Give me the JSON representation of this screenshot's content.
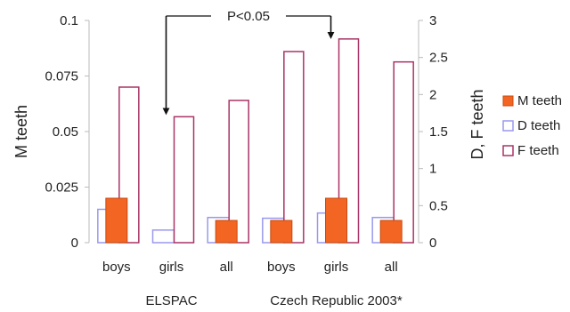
{
  "chart_data": {
    "type": "bar",
    "categories": [
      "boys",
      "girls",
      "all",
      "boys",
      "girls",
      "all"
    ],
    "groups": [
      "ELSPAC",
      "Czech Republic 2003*"
    ],
    "y_left": {
      "label": "M teeth",
      "lim": [
        0,
        0.1
      ],
      "ticks": [
        "0",
        "0.025",
        "0.05",
        "0.075",
        "0.1"
      ]
    },
    "y_right": {
      "label": "D, F teeth",
      "lim": [
        0,
        3
      ],
      "ticks": [
        "0",
        "0.5",
        "1",
        "1.5",
        "2",
        "2.5",
        "3"
      ]
    },
    "series": [
      {
        "name": "M teeth",
        "axis": "left",
        "values": [
          0.02,
          0.0,
          0.01,
          0.01,
          0.02,
          0.01
        ],
        "color": "#f26522"
      },
      {
        "name": "D teeth",
        "axis": "right",
        "values": [
          0.45,
          0.17,
          0.34,
          0.33,
          0.4,
          0.34
        ],
        "color": "#9999ee"
      },
      {
        "name": "F teeth",
        "axis": "right",
        "values": [
          2.1,
          1.7,
          1.92,
          2.58,
          2.75,
          2.44
        ],
        "color": "#aa3366"
      }
    ],
    "annotation": {
      "text": "P<0.05",
      "from_category": 1,
      "to_category": 4
    },
    "legend_position": "right",
    "grid": false
  }
}
